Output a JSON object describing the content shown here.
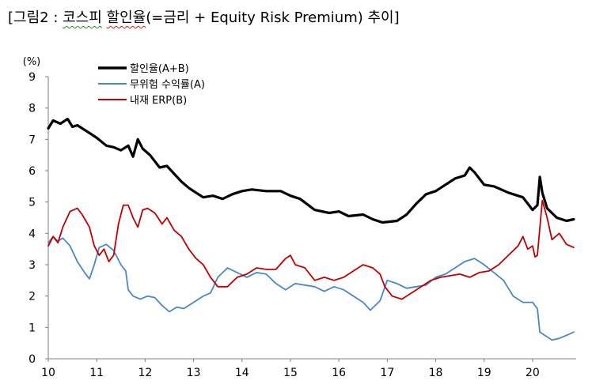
{
  "title": {
    "prefix": "[그림2 : ",
    "underline_a": "코스피",
    "space": " ",
    "underline_b": "할인율",
    "suffix": "(=금리 + Equity Risk Premium) 추이]"
  },
  "chart_data": {
    "type": "line",
    "unit_label": "(%)",
    "ylim": [
      0,
      9
    ],
    "yticks": [
      "0",
      "1",
      "2",
      "3",
      "4",
      "5",
      "6",
      "7",
      "8",
      "9"
    ],
    "xlim": [
      10,
      20.9
    ],
    "xticks": [
      "10",
      "11",
      "12",
      "13",
      "14",
      "15",
      "16",
      "17",
      "18",
      "19",
      "20"
    ],
    "legend_position": "top-left",
    "series": [
      {
        "name": "할인율(A+B)",
        "color": "#000000",
        "width": 3.2,
        "x": [
          10.0,
          10.1,
          10.25,
          10.4,
          10.5,
          10.6,
          10.8,
          11.0,
          11.2,
          11.35,
          11.5,
          11.65,
          11.75,
          11.85,
          11.95,
          12.1,
          12.3,
          12.45,
          12.6,
          12.75,
          12.9,
          13.05,
          13.2,
          13.4,
          13.6,
          13.8,
          14.0,
          14.2,
          14.5,
          14.8,
          15.0,
          15.2,
          15.5,
          15.8,
          16.0,
          16.2,
          16.5,
          16.7,
          16.9,
          17.2,
          17.4,
          17.6,
          17.8,
          18.0,
          18.2,
          18.4,
          18.6,
          18.7,
          18.8,
          19.0,
          19.2,
          19.5,
          19.8,
          20.0,
          20.1,
          20.15,
          20.2,
          20.3,
          20.5,
          20.7,
          20.85
        ],
        "values": [
          7.35,
          7.6,
          7.5,
          7.65,
          7.4,
          7.45,
          7.25,
          7.05,
          6.8,
          6.75,
          6.65,
          6.8,
          6.45,
          7.0,
          6.7,
          6.5,
          6.1,
          6.15,
          5.9,
          5.65,
          5.45,
          5.3,
          5.15,
          5.2,
          5.1,
          5.25,
          5.35,
          5.4,
          5.35,
          5.35,
          5.2,
          5.1,
          4.75,
          4.65,
          4.7,
          4.55,
          4.6,
          4.45,
          4.35,
          4.4,
          4.6,
          4.95,
          5.25,
          5.35,
          5.55,
          5.75,
          5.85,
          6.1,
          5.95,
          5.55,
          5.5,
          5.3,
          5.15,
          4.75,
          4.9,
          5.8,
          5.3,
          4.8,
          4.5,
          4.4,
          4.45
        ]
      },
      {
        "name": "무위험 수익률(A)",
        "color": "#4a86c8",
        "width": 1.8,
        "x": [
          10.0,
          10.1,
          10.2,
          10.3,
          10.45,
          10.6,
          10.75,
          10.85,
          10.95,
          11.05,
          11.2,
          11.35,
          11.5,
          11.6,
          11.65,
          11.75,
          11.9,
          12.05,
          12.2,
          12.35,
          12.5,
          12.65,
          12.8,
          13.0,
          13.2,
          13.35,
          13.5,
          13.7,
          13.9,
          14.1,
          14.3,
          14.5,
          14.7,
          14.9,
          15.1,
          15.3,
          15.5,
          15.7,
          15.9,
          16.1,
          16.3,
          16.5,
          16.65,
          16.75,
          16.85,
          17.0,
          17.2,
          17.4,
          17.6,
          17.8,
          18.0,
          18.2,
          18.4,
          18.6,
          18.8,
          19.0,
          19.2,
          19.4,
          19.6,
          19.8,
          20.0,
          20.1,
          20.15,
          20.25,
          20.4,
          20.55,
          20.7,
          20.85
        ],
        "values": [
          3.7,
          3.9,
          3.75,
          3.85,
          3.6,
          3.1,
          2.75,
          2.55,
          3.0,
          3.55,
          3.65,
          3.45,
          3.0,
          2.8,
          2.2,
          2.0,
          1.9,
          2.0,
          1.95,
          1.7,
          1.5,
          1.65,
          1.6,
          1.8,
          2.0,
          2.1,
          2.6,
          2.9,
          2.75,
          2.6,
          2.75,
          2.7,
          2.4,
          2.2,
          2.4,
          2.35,
          2.3,
          2.15,
          2.3,
          2.2,
          2.0,
          1.8,
          1.55,
          1.7,
          1.85,
          2.5,
          2.4,
          2.25,
          2.3,
          2.35,
          2.6,
          2.7,
          2.9,
          3.1,
          3.2,
          3.0,
          2.75,
          2.5,
          2.0,
          1.8,
          1.8,
          1.6,
          0.85,
          0.75,
          0.6,
          0.65,
          0.75,
          0.85
        ]
      },
      {
        "name": "내재 ERP(B)",
        "color": "#c00000",
        "width": 1.8,
        "x": [
          10.0,
          10.1,
          10.2,
          10.3,
          10.45,
          10.6,
          10.7,
          10.85,
          10.95,
          11.05,
          11.15,
          11.25,
          11.35,
          11.45,
          11.55,
          11.65,
          11.75,
          11.85,
          11.95,
          12.05,
          12.2,
          12.35,
          12.45,
          12.6,
          12.75,
          12.9,
          13.05,
          13.2,
          13.35,
          13.5,
          13.7,
          13.9,
          14.1,
          14.3,
          14.5,
          14.7,
          14.9,
          15.0,
          15.1,
          15.3,
          15.5,
          15.7,
          15.9,
          16.1,
          16.3,
          16.5,
          16.7,
          16.85,
          16.95,
          17.1,
          17.3,
          17.5,
          17.7,
          17.9,
          18.1,
          18.3,
          18.5,
          18.7,
          18.9,
          19.1,
          19.3,
          19.5,
          19.7,
          19.8,
          19.9,
          20.0,
          20.05,
          20.1,
          20.2,
          20.3,
          20.4,
          20.55,
          20.7,
          20.85
        ],
        "values": [
          3.6,
          3.9,
          3.7,
          4.2,
          4.7,
          4.8,
          4.6,
          4.2,
          3.6,
          3.3,
          3.5,
          3.1,
          3.3,
          4.3,
          4.9,
          4.9,
          4.5,
          4.2,
          4.75,
          4.8,
          4.65,
          4.3,
          4.5,
          4.1,
          3.9,
          3.5,
          3.2,
          3.0,
          2.6,
          2.3,
          2.3,
          2.6,
          2.7,
          2.9,
          2.85,
          2.85,
          3.2,
          3.3,
          3.0,
          2.9,
          2.5,
          2.6,
          2.5,
          2.6,
          2.8,
          3.0,
          2.9,
          2.7,
          2.3,
          2.0,
          1.9,
          2.1,
          2.3,
          2.5,
          2.6,
          2.65,
          2.7,
          2.6,
          2.75,
          2.8,
          3.0,
          3.3,
          3.6,
          3.9,
          3.5,
          3.6,
          3.25,
          3.3,
          5.05,
          4.5,
          3.8,
          4.0,
          3.65,
          3.55
        ]
      }
    ]
  }
}
